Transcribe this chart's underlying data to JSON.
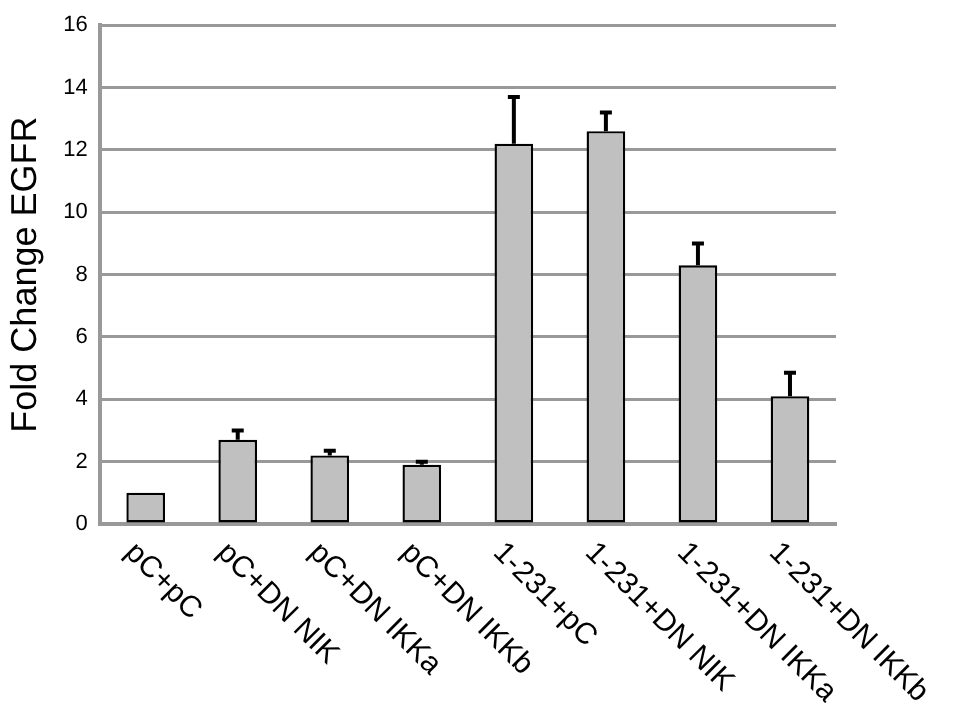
{
  "chart_data": {
    "type": "bar",
    "ylabel": "Fold Change EGFR",
    "categories": [
      "pC+pC",
      "pC+DN NIK",
      "pC+DN IKKa",
      "pC+DN IKKb",
      "1-231+pC",
      "1-231+DN NIK",
      "1-231+DN IKKa",
      "1-231+DN IKKb"
    ],
    "values": [
      1.0,
      2.7,
      2.2,
      1.9,
      12.2,
      12.6,
      8.3,
      4.1
    ],
    "errors": [
      null,
      [
        2.7,
        3.0
      ],
      [
        2.2,
        2.35
      ],
      [
        1.9,
        2.0
      ],
      [
        12.2,
        13.7
      ],
      [
        12.6,
        13.2
      ],
      [
        8.3,
        9.0
      ],
      [
        4.1,
        4.85
      ]
    ],
    "color": "#c0c0c0",
    "ylim": [
      0,
      16
    ],
    "yticks": [
      0,
      2,
      4,
      6,
      8,
      10,
      12,
      14,
      16
    ],
    "grid": "y",
    "legend": false
  }
}
